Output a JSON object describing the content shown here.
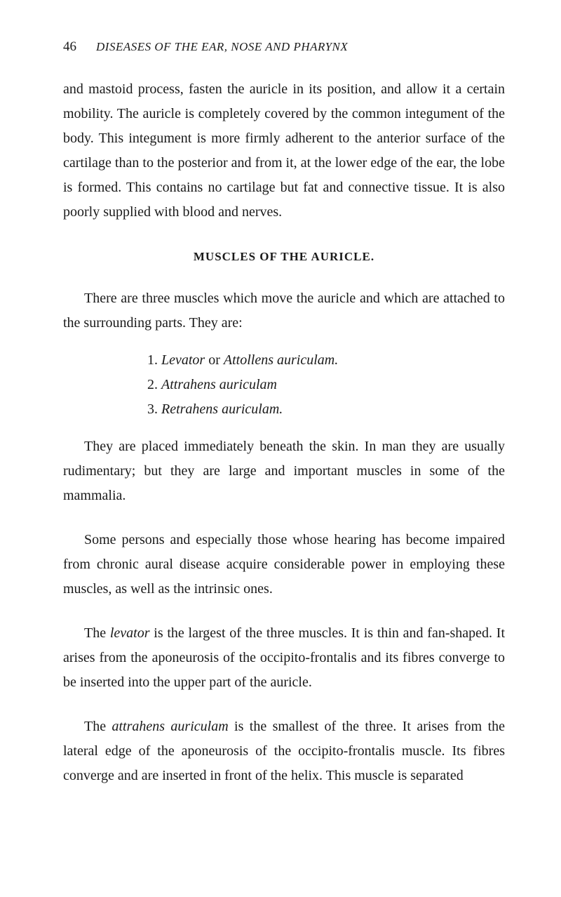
{
  "page_number": "46",
  "running_title": "DISEASES OF THE EAR, NOSE AND PHARYNX",
  "paragraph1": "and mastoid process, fasten the auricle in its position, and allow it a certain mobility. The auricle is completely covered by the common integument of the body. This integument is more firmly adherent to the anterior surface of the cartilage than to the posterior and from it, at the lower edge of the ear, the lobe is formed. This contains no cartilage but fat and connective tissue. It is also poorly supplied with blood and nerves.",
  "section_heading": "MUSCLES OF THE AURICLE.",
  "paragraph2_part1": "There are three muscles which move the auricle and which are attached to the surrounding parts. They are:",
  "list": {
    "item1_prefix": "1. ",
    "item1_italic1": "Levator",
    "item1_mid": " or ",
    "item1_italic2": "Attollens auriculam.",
    "item2_prefix": "2. ",
    "item2_italic": "Attrahens auriculam",
    "item3_prefix": "3. ",
    "item3_italic": "Retrahens auriculam."
  },
  "paragraph3": "They are placed immediately beneath the skin. In man they are usually rudimentary; but they are large and important muscles in some of the mammalia.",
  "paragraph4": "Some persons and especially those whose hearing has become impaired from chronic aural disease acquire considerable power in employing these muscles, as well as the intrinsic ones.",
  "paragraph5_prefix": "The ",
  "paragraph5_italic": "levator",
  "paragraph5_rest": " is the largest of the three muscles. It is thin and fan-shaped. It arises from the aponeurosis of the occipito-frontalis and its fibres converge to be inserted into the upper part of the auricle.",
  "paragraph6_prefix": "The ",
  "paragraph6_italic": "attrahens auriculam",
  "paragraph6_rest": " is the smallest of the three. It arises from the lateral edge of the aponeurosis of the occipito-frontalis muscle. Its fibres converge and are inserted in front of the helix. This muscle is separated"
}
